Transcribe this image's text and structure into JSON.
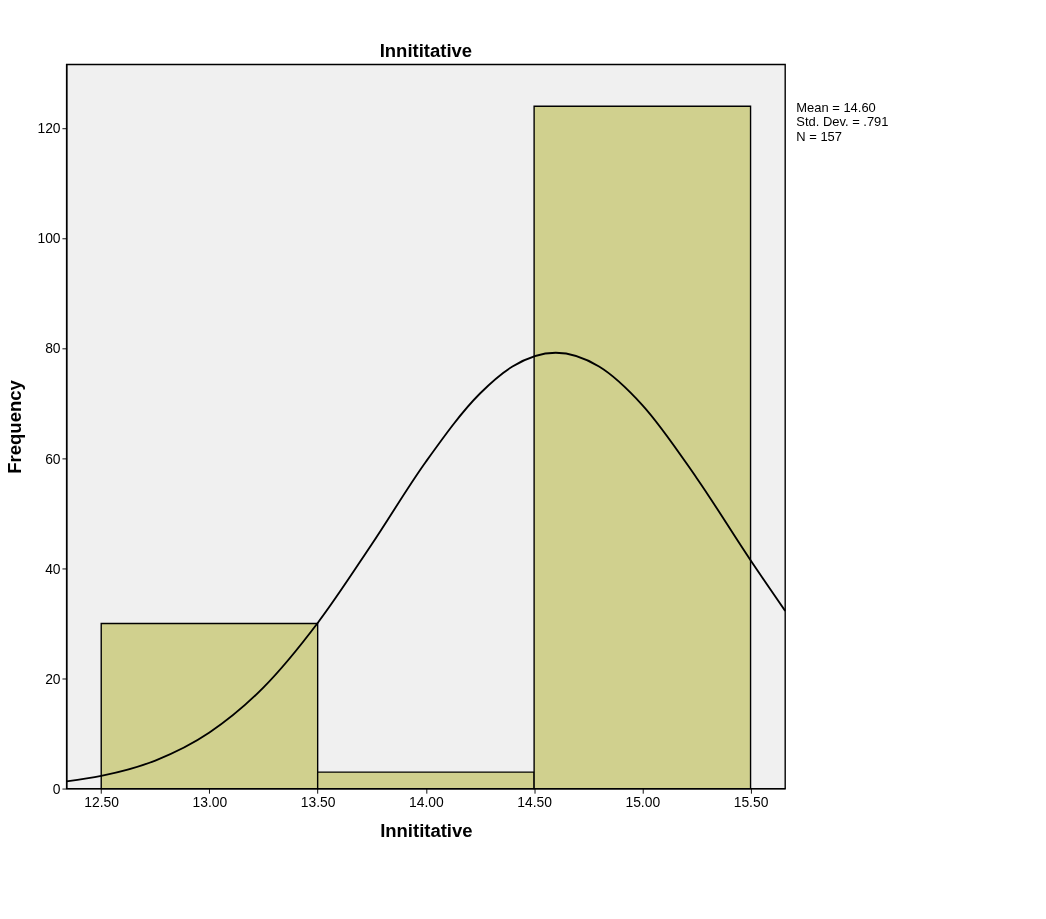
{
  "chart_data": {
    "type": "histogram",
    "title": "Innititative",
    "xlabel": "Innititative",
    "ylabel": "Frequency",
    "series": [
      {
        "bins": [
          12.5,
          13.5,
          14.5,
          15.5
        ],
        "values": [
          30,
          3,
          124
        ],
        "color": "#d0d08e"
      },
      {
        "type": "line",
        "color": "#000000",
        "x": [
          12.34,
          12.5,
          12.75,
          13.0,
          13.25,
          13.5,
          13.75,
          14.0,
          14.25,
          14.4,
          14.6,
          14.8,
          15.0,
          15.25,
          15.5,
          15.66
        ],
        "values": [
          1.3,
          2.3,
          5.1,
          10.2,
          18.4,
          30.1,
          44.4,
          59.4,
          71.8,
          76.7,
          79.2,
          76.7,
          69.7,
          56.5,
          41.5,
          32.3
        ]
      }
    ],
    "xlim": [
      12.34,
      15.66
    ],
    "ylim": [
      0,
      131.6
    ],
    "xticks": [
      {
        "value": 12.5,
        "label": "12.50"
      },
      {
        "value": 13.0,
        "label": "13.00"
      },
      {
        "value": 13.5,
        "label": "13.50"
      },
      {
        "value": 14.0,
        "label": "14.00"
      },
      {
        "value": 14.5,
        "label": "14.50"
      },
      {
        "value": 15.0,
        "label": "15.00"
      },
      {
        "value": 15.5,
        "label": "15.50"
      }
    ],
    "yticks": [
      0,
      20,
      40,
      60,
      80,
      100,
      120
    ],
    "annotations": [
      "Mean = 14.60",
      "Std. Dev. = .791",
      "N = 157"
    ],
    "grid": false
  }
}
